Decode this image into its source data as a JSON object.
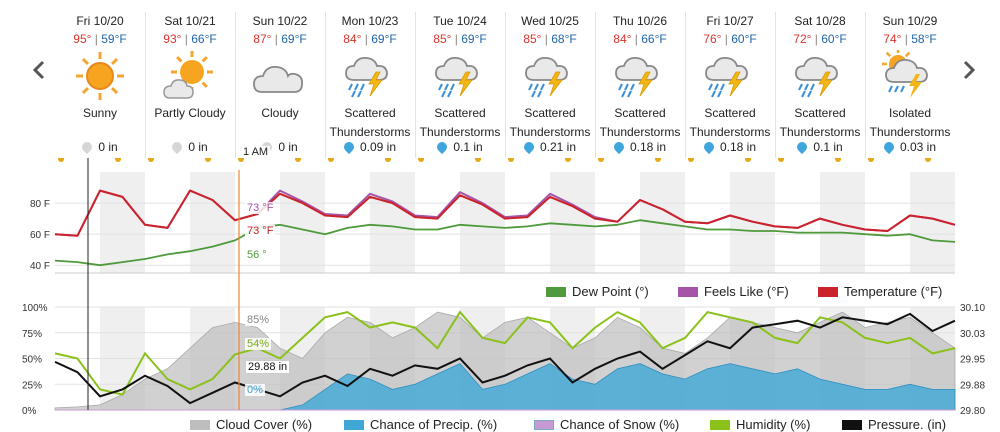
{
  "nav": {
    "prev_icon": "chevron-left-icon",
    "next_icon": "chevron-right-icon"
  },
  "days": [
    {
      "date": "Fri 10/20",
      "hi": "95°",
      "lo": "59°F",
      "cond1": "Sunny",
      "cond2": "",
      "icon": "sun-icon",
      "precip": "0 in",
      "drop": "gray"
    },
    {
      "date": "Sat 10/21",
      "hi": "93°",
      "lo": "66°F",
      "cond1": "Partly Cloudy",
      "cond2": "",
      "icon": "partly-cloudy-icon",
      "precip": "0 in",
      "drop": "gray"
    },
    {
      "date": "Sun 10/22",
      "hi": "87°",
      "lo": "69°F",
      "cond1": "Cloudy",
      "cond2": "",
      "icon": "cloud-icon",
      "precip": "0 in",
      "drop": "gray"
    },
    {
      "date": "Mon 10/23",
      "hi": "84°",
      "lo": "69°F",
      "cond1": "Scattered",
      "cond2": "Thunderstorms",
      "icon": "thunderstorm-icon",
      "precip": "0.09 in",
      "drop": "blue"
    },
    {
      "date": "Tue 10/24",
      "hi": "85°",
      "lo": "69°F",
      "cond1": "Scattered",
      "cond2": "Thunderstorms",
      "icon": "thunderstorm-icon",
      "precip": "0.1 in",
      "drop": "blue"
    },
    {
      "date": "Wed 10/25",
      "hi": "85°",
      "lo": "68°F",
      "cond1": "Scattered",
      "cond2": "Thunderstorms",
      "icon": "thunderstorm-icon",
      "precip": "0.21 in",
      "drop": "blue"
    },
    {
      "date": "Thu 10/26",
      "hi": "84°",
      "lo": "66°F",
      "cond1": "Scattered",
      "cond2": "Thunderstorms",
      "icon": "thunderstorm-icon",
      "precip": "0.18 in",
      "drop": "blue"
    },
    {
      "date": "Fri 10/27",
      "hi": "76°",
      "lo": "60°F",
      "cond1": "Scattered",
      "cond2": "Thunderstorms",
      "icon": "thunderstorm-icon",
      "precip": "0.18 in",
      "drop": "blue"
    },
    {
      "date": "Sat 10/28",
      "hi": "72°",
      "lo": "60°F",
      "cond1": "Scattered",
      "cond2": "Thunderstorms",
      "icon": "thunderstorm-icon",
      "precip": "0.1 in",
      "drop": "blue"
    },
    {
      "date": "Sun 10/29",
      "hi": "74°",
      "lo": "58°F",
      "cond1": "Isolated",
      "cond2": "Thunderstorms",
      "icon": "isolated-thunderstorm-icon",
      "precip": "0.03 in",
      "drop": "blue"
    }
  ],
  "cursor": {
    "time_label": "1 AM",
    "temp": "73 °F",
    "feels": "73 °F",
    "dew": "56 °",
    "cloud": "85%",
    "humidity": "54%",
    "pressure": "29.88 in",
    "precip": "0%"
  },
  "colors": {
    "temp": "#cc2229",
    "feels": "#a654a8",
    "dew": "#4f9a3c",
    "cloud": "#bdbdbd",
    "precip": "#3fa7d6",
    "snow": "#c79ad3",
    "humidity": "#8ac11a",
    "pressure": "#111111",
    "cursor": "#e8873a"
  },
  "chart_data": [
    {
      "type": "line",
      "ylim": [
        35,
        100
      ],
      "yticks": [
        "80 F",
        "60 F",
        "40 F"
      ],
      "ytick_values": [
        80,
        60,
        40
      ],
      "x_hours": [
        0,
        6,
        12,
        18,
        24,
        30,
        36,
        42,
        48,
        54,
        60,
        66,
        72,
        78,
        84,
        90,
        96,
        102,
        108,
        114,
        120,
        126,
        132,
        138,
        144,
        150,
        156,
        162,
        168,
        174,
        180,
        186,
        192,
        198,
        204,
        210,
        216,
        222,
        228,
        234,
        240
      ],
      "series": [
        {
          "name": "Temperature (°F)",
          "values": [
            60,
            59,
            88,
            84,
            66,
            64,
            88,
            82,
            69,
            73,
            86,
            80,
            72,
            71,
            84,
            80,
            71,
            70,
            85,
            79,
            70,
            71,
            84,
            78,
            70,
            68,
            82,
            76,
            68,
            67,
            72,
            68,
            65,
            64,
            70,
            66,
            63,
            62,
            72,
            70,
            66
          ]
        },
        {
          "name": "Feels Like (°F)",
          "values": [
            60,
            59,
            88,
            84,
            66,
            64,
            88,
            82,
            69,
            73,
            88,
            81,
            73,
            72,
            86,
            81,
            72,
            71,
            87,
            80,
            71,
            72,
            86,
            79,
            71,
            68,
            82,
            76,
            68,
            67,
            72,
            68,
            65,
            64,
            70,
            66,
            63,
            62,
            72,
            70,
            66
          ]
        },
        {
          "name": "Dew Point (°)",
          "values": [
            43,
            42,
            40,
            42,
            44,
            47,
            49,
            52,
            56,
            64,
            66,
            63,
            60,
            64,
            66,
            65,
            63,
            63,
            66,
            65,
            64,
            65,
            67,
            66,
            65,
            66,
            69,
            67,
            65,
            63,
            63,
            62,
            62,
            61,
            61,
            61,
            60,
            59,
            60,
            56,
            55
          ]
        }
      ],
      "legend": "bottom-right"
    },
    {
      "type": "area",
      "ylim_left": [
        0,
        100
      ],
      "yticks_left": [
        "100%",
        "75%",
        "50%",
        "25%",
        "0%"
      ],
      "ylim_right": [
        29.8,
        30.1
      ],
      "yticks_right": [
        "30.10",
        "30.03",
        "29.95",
        "29.88",
        "29.80"
      ],
      "x_hours": [
        0,
        6,
        12,
        18,
        24,
        30,
        36,
        42,
        48,
        54,
        60,
        66,
        72,
        78,
        84,
        90,
        96,
        102,
        108,
        114,
        120,
        126,
        132,
        138,
        144,
        150,
        156,
        162,
        168,
        174,
        180,
        186,
        192,
        198,
        204,
        210,
        216,
        222,
        228,
        234,
        240
      ],
      "series": [
        {
          "name": "Cloud Cover (%)",
          "values": [
            2,
            3,
            5,
            15,
            30,
            40,
            60,
            80,
            85,
            80,
            60,
            50,
            75,
            90,
            85,
            70,
            80,
            95,
            90,
            70,
            85,
            90,
            75,
            60,
            70,
            90,
            80,
            60,
            55,
            70,
            90,
            85,
            80,
            75,
            85,
            95,
            80,
            85,
            90,
            75,
            60
          ]
        },
        {
          "name": "Chance of Precip. (%)",
          "values": [
            0,
            0,
            0,
            0,
            0,
            0,
            0,
            0,
            0,
            0,
            0,
            5,
            20,
            35,
            30,
            20,
            25,
            35,
            45,
            20,
            25,
            35,
            45,
            30,
            25,
            40,
            45,
            35,
            30,
            40,
            45,
            40,
            35,
            40,
            30,
            25,
            20,
            20,
            25,
            20,
            20
          ]
        },
        {
          "name": "Chance of Snow (%)",
          "values": [
            0,
            0,
            0,
            0,
            0,
            0,
            0,
            0,
            0,
            0,
            0,
            0,
            0,
            0,
            0,
            0,
            0,
            0,
            0,
            0,
            0,
            0,
            0,
            0,
            0,
            0,
            0,
            0,
            0,
            0,
            0,
            0,
            0,
            0,
            0,
            0,
            0,
            0,
            0,
            0,
            0
          ]
        },
        {
          "name": "Humidity (%)",
          "values": [
            55,
            50,
            20,
            15,
            55,
            30,
            20,
            30,
            54,
            60,
            50,
            70,
            90,
            95,
            80,
            85,
            80,
            60,
            95,
            70,
            65,
            90,
            85,
            60,
            80,
            95,
            85,
            60,
            70,
            95,
            90,
            85,
            70,
            65,
            90,
            85,
            70,
            65,
            70,
            55,
            60
          ]
        },
        {
          "name": "Pressure. (in)",
          "values": [
            29.94,
            29.91,
            29.84,
            29.86,
            29.9,
            29.87,
            29.82,
            29.85,
            29.88,
            29.86,
            29.84,
            29.88,
            29.9,
            29.87,
            29.92,
            29.9,
            29.93,
            29.92,
            29.95,
            29.88,
            29.9,
            29.93,
            29.95,
            29.88,
            29.92,
            29.95,
            29.97,
            29.92,
            29.96,
            30.0,
            29.98,
            30.04,
            30.05,
            30.06,
            30.04,
            30.07,
            30.06,
            30.05,
            30.08,
            30.03,
            30.06
          ]
        }
      ],
      "legend": "bottom"
    }
  ]
}
